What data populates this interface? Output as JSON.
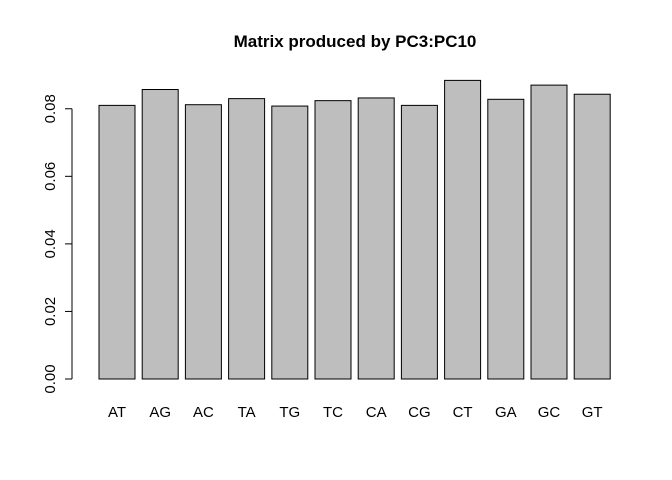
{
  "chart_data": {
    "type": "bar",
    "title": "Matrix produced by PC3:PC10",
    "xlabel": "",
    "ylabel": "",
    "categories": [
      "AT",
      "AG",
      "AC",
      "TA",
      "TG",
      "TC",
      "CA",
      "CG",
      "CT",
      "GA",
      "GC",
      "GT"
    ],
    "values": [
      0.081,
      0.0857,
      0.0812,
      0.083,
      0.0808,
      0.0824,
      0.0832,
      0.081,
      0.0884,
      0.0828,
      0.087,
      0.0843
    ],
    "ylim": [
      0,
      0.09
    ],
    "yticks": [
      "0.00",
      "0.02",
      "0.04",
      "0.06",
      "0.08"
    ],
    "bar_color": "#bebebe",
    "grid": false,
    "legend": "none"
  }
}
